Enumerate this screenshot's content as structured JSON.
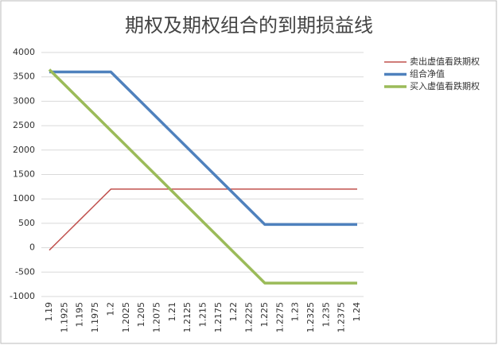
{
  "chart_data": {
    "type": "line",
    "title": "期权及期权组合的到期损益线",
    "categories": [
      "1.19",
      "1.1925",
      "1.195",
      "1.1975",
      "1.2",
      "1.2025",
      "1.205",
      "1.2075",
      "1.21",
      "1.2125",
      "1.215",
      "1.2175",
      "1.22",
      "1.2225",
      "1.225",
      "1.2275",
      "1.23",
      "1.2325",
      "1.235",
      "1.2375",
      "1.24"
    ],
    "series": [
      {
        "name": "卖出虚值看跌期权",
        "color": "#c0504d",
        "width": 1.5,
        "values": [
          -50,
          262.5,
          575,
          887.5,
          1200,
          1200,
          1200,
          1200,
          1200,
          1200,
          1200,
          1200,
          1200,
          1200,
          1200,
          1200,
          1200,
          1200,
          1200,
          1200,
          1200
        ]
      },
      {
        "name": "组合净值",
        "color": "#4f81bd",
        "width": 3.5,
        "values": [
          3600,
          3600,
          3600,
          3600,
          3600,
          3287.5,
          2975,
          2662.5,
          2350,
          2037.5,
          1725,
          1412.5,
          1100,
          787.5,
          475,
          475,
          475,
          475,
          475,
          475,
          475
        ]
      },
      {
        "name": "买入虚值看跌期权",
        "color": "#9bbb59",
        "width": 3.5,
        "values": [
          3650,
          3337.5,
          3025,
          2712.5,
          2400,
          2087.5,
          1775,
          1462.5,
          1150,
          837.5,
          525,
          212.5,
          -100,
          -412.5,
          -725,
          -725,
          -725,
          -725,
          -725,
          -725,
          -725
        ]
      }
    ],
    "ylim": [
      -1000,
      4000
    ],
    "yticks": [
      -1000,
      -500,
      0,
      500,
      1000,
      1500,
      2000,
      2500,
      3000,
      3500,
      4000
    ],
    "grid": true,
    "legend": "right"
  }
}
